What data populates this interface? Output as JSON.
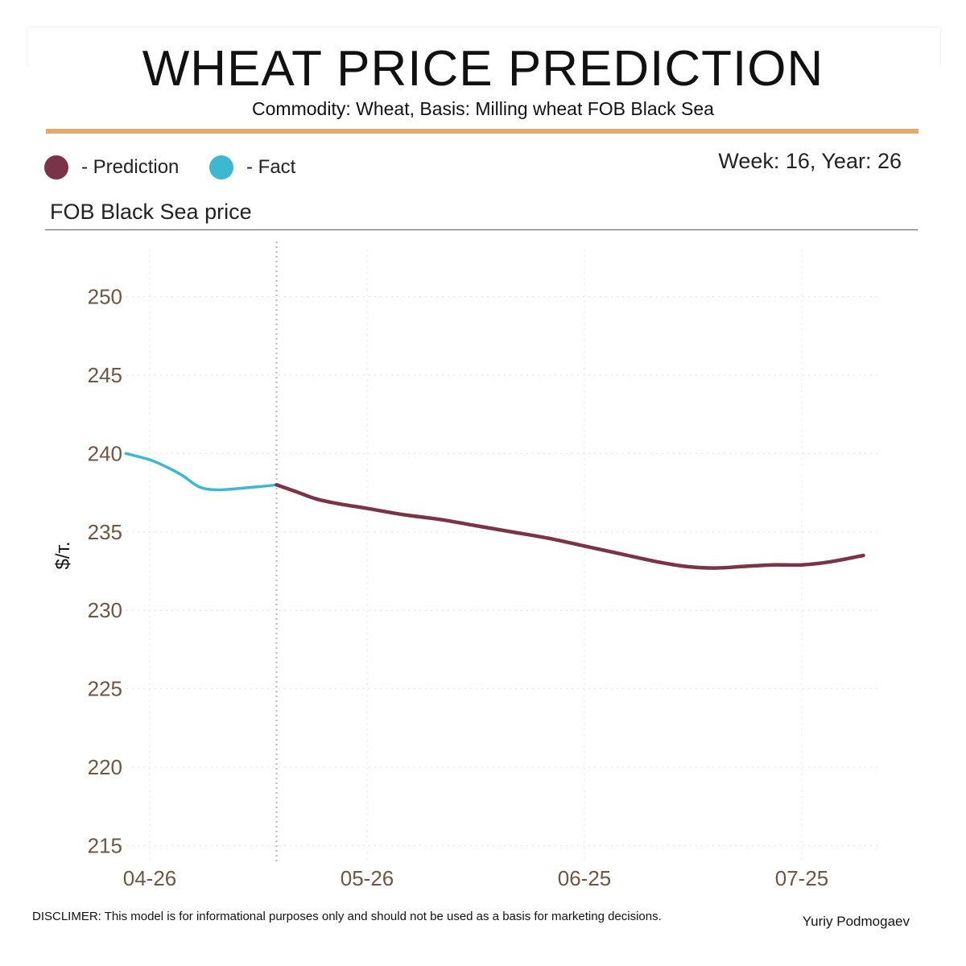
{
  "header": {
    "title": "WHEAT PRICE PREDICTION",
    "subtitle": "Commodity: Wheat, Basis: Milling wheat FOB Black Sea",
    "week_label": "Week: 16, Year: 26"
  },
  "legend": {
    "items": [
      {
        "label": "- Prediction",
        "color": "#7a3347"
      },
      {
        "label": "- Fact",
        "color": "#3cb9d1"
      }
    ]
  },
  "panel": {
    "title": "FOB Black Sea price"
  },
  "colors": {
    "accent": "#e2a96c",
    "fact": "#3cb9d1",
    "prediction": "#7a3347",
    "tick_text": "#6e5644",
    "grid": "#e4e4e4"
  },
  "chart_data": {
    "type": "line",
    "ylabel": "$/т.",
    "ylim": [
      214,
      253
    ],
    "y_ticks": [
      215,
      220,
      225,
      230,
      235,
      240,
      245,
      250
    ],
    "x_tick_labels": [
      "04-26",
      "05-26",
      "06-25",
      "07-25"
    ],
    "x_tick_days": [
      0,
      30,
      60,
      90
    ],
    "xlim": [
      -4,
      101
    ],
    "forecast_start_day": 17.5,
    "grid": true,
    "series": [
      {
        "name": "Fact",
        "x": [
          -3.3,
          0,
          2.5,
          4.5,
          6.7,
          8.5,
          10.5,
          13,
          15.5,
          17.5
        ],
        "y": [
          240.0,
          239.6,
          239.1,
          238.6,
          237.9,
          237.7,
          237.7,
          237.8,
          237.9,
          238.0
        ]
      },
      {
        "name": "Prediction",
        "x": [
          17.5,
          20,
          23,
          26,
          30,
          35,
          40,
          45,
          50,
          55,
          60,
          65,
          70,
          74,
          78,
          82,
          86,
          90,
          94,
          98.5
        ],
        "y": [
          238.0,
          237.6,
          237.1,
          236.8,
          236.5,
          236.1,
          235.8,
          235.4,
          235.0,
          234.6,
          234.1,
          233.6,
          233.1,
          232.8,
          232.7,
          232.8,
          232.9,
          232.9,
          233.1,
          233.5
        ]
      }
    ]
  },
  "footer": {
    "disclaimer": "DISCLIMER:  This model is for informational purposes only and should not be used as a basis for marketing decisions.",
    "author": "Yuriy Podmogaev"
  }
}
